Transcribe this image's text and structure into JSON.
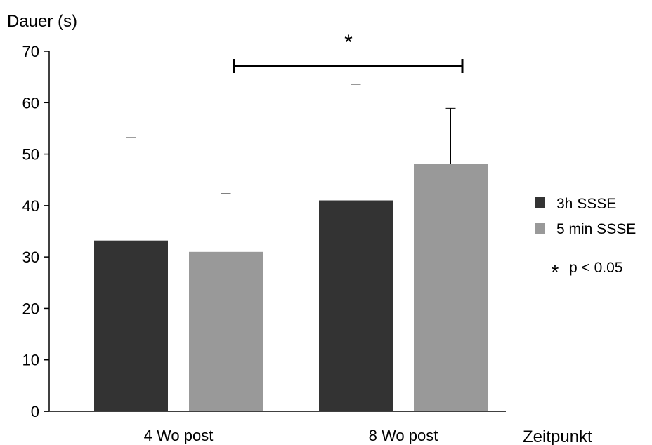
{
  "chart_data": {
    "type": "bar",
    "ylabel": "Dauer (s)",
    "xlabel": "Zeitpunkt",
    "ylim": [
      0,
      70
    ],
    "yticks": [
      0,
      10,
      20,
      30,
      40,
      50,
      60,
      70
    ],
    "categories": [
      "4 Wo post",
      "8 Wo post"
    ],
    "series": [
      {
        "name": "3h SSSE",
        "color": "#333333",
        "values": [
          33.2,
          41.0
        ],
        "errors": [
          20.0,
          22.6
        ]
      },
      {
        "name": "5 min SSSE",
        "color": "#999999",
        "values": [
          31.0,
          48.1
        ],
        "errors": [
          11.3,
          10.8
        ]
      }
    ],
    "significance": {
      "marker": "*",
      "between": [
        "4 Wo post / 5 min SSSE",
        "8 Wo post / 5 min SSSE"
      ]
    },
    "legend": {
      "note_symbol": "*",
      "note_text": "p < 0.05",
      "placement": "right"
    },
    "grid": false
  }
}
